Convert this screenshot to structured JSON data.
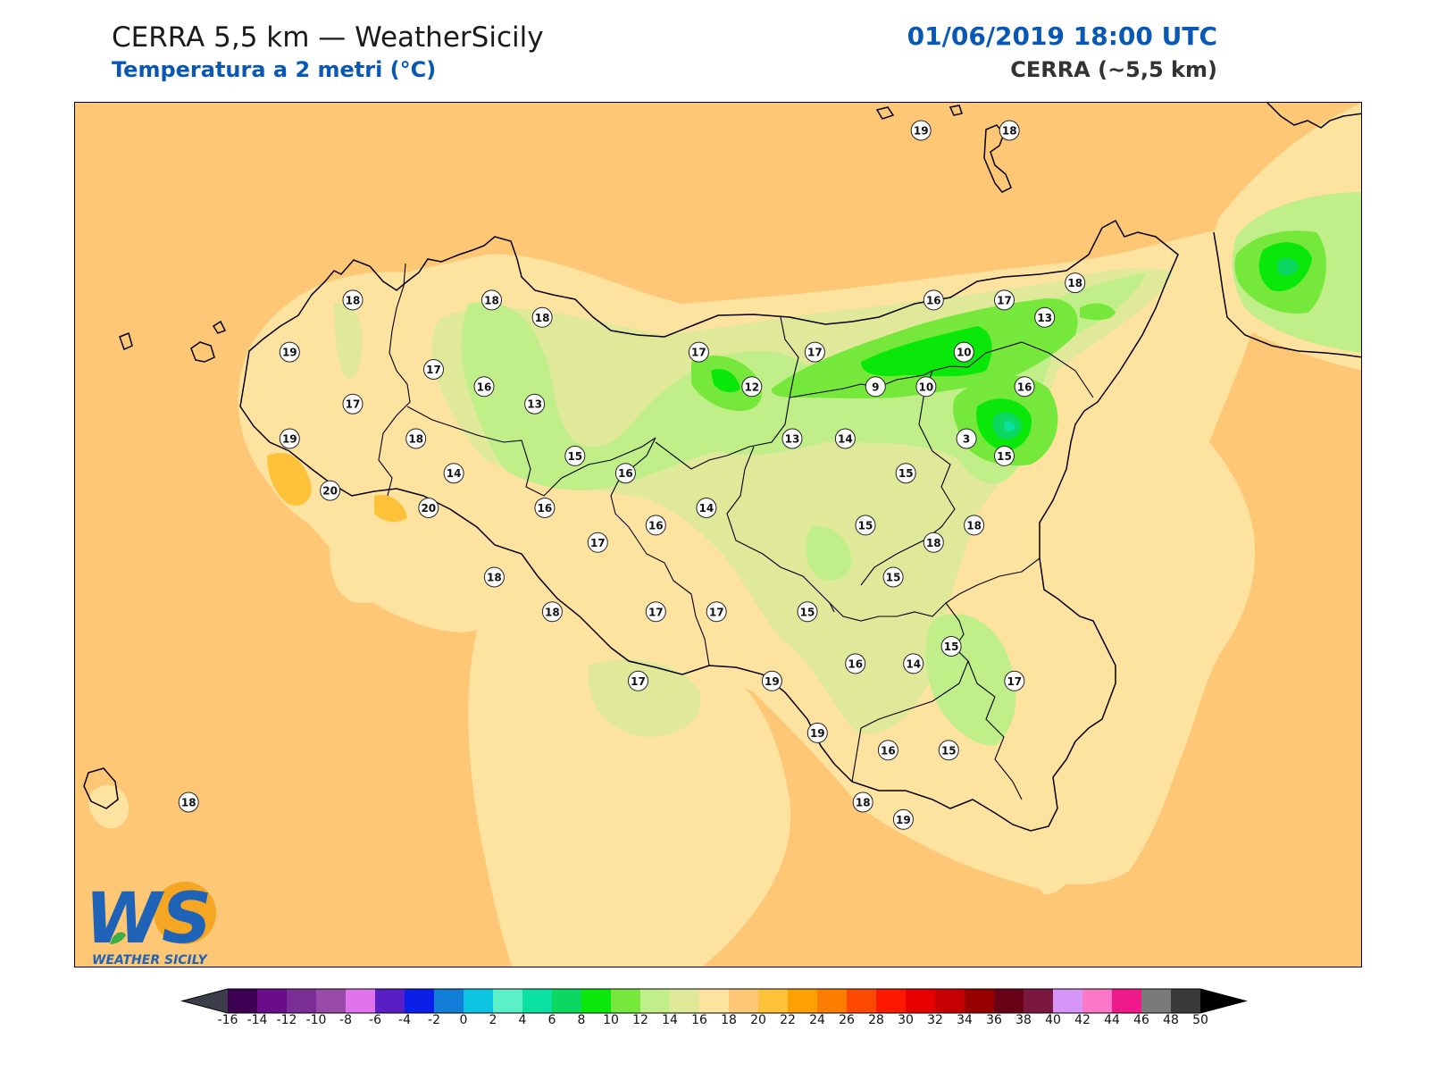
{
  "header": {
    "title": "CERRA 5,5 km — WeatherSicily",
    "subtitle": "Temperatura a 2 metri (°C)",
    "datetime": "01/06/2019 18:00 UTC",
    "model": "CERRA (~5,5 km)"
  },
  "colorbar": {
    "ticks": [
      "-16",
      "-14",
      "-12",
      "-10",
      "-8",
      "-6",
      "-4",
      "-2",
      "0",
      "2",
      "4",
      "6",
      "8",
      "10",
      "12",
      "14",
      "16",
      "18",
      "20",
      "22",
      "24",
      "26",
      "28",
      "30",
      "32",
      "34",
      "36",
      "38",
      "40",
      "42",
      "44",
      "46",
      "48",
      "50"
    ],
    "colors": [
      "#3d0052",
      "#6a0d8a",
      "#7b2d96",
      "#9a4aa8",
      "#e074ea",
      "#5a1fc4",
      "#0a1fe8",
      "#137ed8",
      "#0ac4e0",
      "#5cf0c8",
      "#0ae0a0",
      "#0ad860",
      "#0ae80a",
      "#76e83c",
      "#c0ee88",
      "#e0e89a",
      "#fee3a0",
      "#fec776",
      "#fec23a",
      "#fea000",
      "#fd7d00",
      "#fd4a00",
      "#fd1800",
      "#e60000",
      "#c60000",
      "#980000",
      "#6a0016",
      "#7a1840",
      "#d696f8",
      "#fd78c8",
      "#f0198c",
      "#7a7a7a",
      "#3a3a3a"
    ]
  },
  "logo": {
    "initials": "WS",
    "name": "WEATHER SICILY"
  },
  "stations": [
    {
      "value": "19",
      "lon": 14.85,
      "lat": 38.72
    },
    {
      "value": "18",
      "lon": 15.2,
      "lat": 38.72
    },
    {
      "value": "18",
      "lon": 12.6,
      "lat": 38.23
    },
    {
      "value": "18",
      "lon": 13.15,
      "lat": 38.23
    },
    {
      "value": "18",
      "lon": 13.35,
      "lat": 38.18
    },
    {
      "value": "19",
      "lon": 12.35,
      "lat": 38.08
    },
    {
      "value": "17",
      "lon": 12.92,
      "lat": 38.03
    },
    {
      "value": "16",
      "lon": 13.12,
      "lat": 37.98
    },
    {
      "value": "17",
      "lon": 12.6,
      "lat": 37.93
    },
    {
      "value": "13",
      "lon": 13.32,
      "lat": 37.93
    },
    {
      "value": "17",
      "lon": 13.97,
      "lat": 38.08
    },
    {
      "value": "12",
      "lon": 14.18,
      "lat": 37.98
    },
    {
      "value": "17",
      "lon": 14.43,
      "lat": 38.08
    },
    {
      "value": "9",
      "lon": 14.67,
      "lat": 37.98
    },
    {
      "value": "10",
      "lon": 14.87,
      "lat": 37.98
    },
    {
      "value": "10",
      "lon": 15.02,
      "lat": 38.08
    },
    {
      "value": "16",
      "lon": 14.9,
      "lat": 38.23
    },
    {
      "value": "17",
      "lon": 15.18,
      "lat": 38.23
    },
    {
      "value": "13",
      "lon": 15.34,
      "lat": 38.18
    },
    {
      "value": "18",
      "lon": 15.46,
      "lat": 38.28
    },
    {
      "value": "16",
      "lon": 15.26,
      "lat": 37.98
    },
    {
      "value": "3",
      "lon": 15.03,
      "lat": 37.83
    },
    {
      "value": "15",
      "lon": 15.18,
      "lat": 37.78
    },
    {
      "value": "19",
      "lon": 12.35,
      "lat": 37.83
    },
    {
      "value": "18",
      "lon": 12.85,
      "lat": 37.83
    },
    {
      "value": "20",
      "lon": 12.51,
      "lat": 37.68
    },
    {
      "value": "20",
      "lon": 12.9,
      "lat": 37.63
    },
    {
      "value": "14",
      "lon": 13.0,
      "lat": 37.73
    },
    {
      "value": "15",
      "lon": 13.48,
      "lat": 37.78
    },
    {
      "value": "16",
      "lon": 13.68,
      "lat": 37.73
    },
    {
      "value": "13",
      "lon": 14.34,
      "lat": 37.83
    },
    {
      "value": "14",
      "lon": 14.55,
      "lat": 37.83
    },
    {
      "value": "15",
      "lon": 14.79,
      "lat": 37.73
    },
    {
      "value": "16",
      "lon": 13.36,
      "lat": 37.63
    },
    {
      "value": "16",
      "lon": 13.8,
      "lat": 37.58
    },
    {
      "value": "14",
      "lon": 14.0,
      "lat": 37.63
    },
    {
      "value": "15",
      "lon": 14.63,
      "lat": 37.58
    },
    {
      "value": "18",
      "lon": 14.9,
      "lat": 37.53
    },
    {
      "value": "18",
      "lon": 15.06,
      "lat": 37.58
    },
    {
      "value": "17",
      "lon": 13.57,
      "lat": 37.53
    },
    {
      "value": "18",
      "lon": 13.16,
      "lat": 37.43
    },
    {
      "value": "15",
      "lon": 14.74,
      "lat": 37.43
    },
    {
      "value": "18",
      "lon": 13.39,
      "lat": 37.33
    },
    {
      "value": "17",
      "lon": 13.8,
      "lat": 37.33
    },
    {
      "value": "17",
      "lon": 14.04,
      "lat": 37.33
    },
    {
      "value": "15",
      "lon": 14.4,
      "lat": 37.33
    },
    {
      "value": "15",
      "lon": 14.97,
      "lat": 37.23
    },
    {
      "value": "16",
      "lon": 14.59,
      "lat": 37.18
    },
    {
      "value": "14",
      "lon": 14.82,
      "lat": 37.18
    },
    {
      "value": "17",
      "lon": 13.73,
      "lat": 37.13
    },
    {
      "value": "19",
      "lon": 14.26,
      "lat": 37.13
    },
    {
      "value": "17",
      "lon": 15.22,
      "lat": 37.13
    },
    {
      "value": "16",
      "lon": 14.72,
      "lat": 36.93
    },
    {
      "value": "15",
      "lon": 14.96,
      "lat": 36.93
    },
    {
      "value": "19",
      "lon": 14.44,
      "lat": 36.98
    },
    {
      "value": "18",
      "lon": 14.62,
      "lat": 36.78
    },
    {
      "value": "19",
      "lon": 14.78,
      "lat": 36.73
    },
    {
      "value": "18",
      "lon": 11.95,
      "lat": 36.78
    }
  ]
}
